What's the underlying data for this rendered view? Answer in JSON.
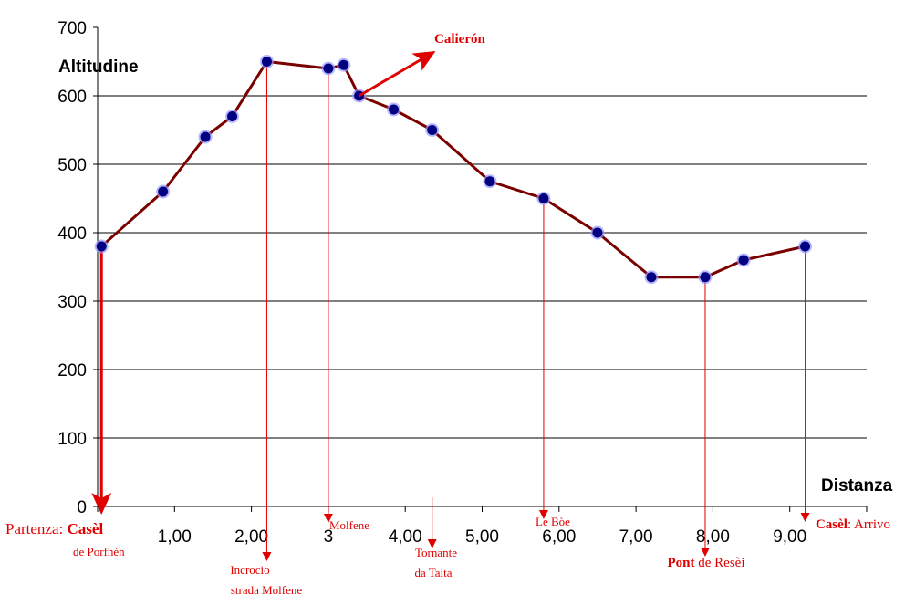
{
  "chart_data": {
    "type": "line",
    "ylabel": "Altitudine",
    "xlabel": "Distanza",
    "ylim": [
      0,
      700
    ],
    "xlim": [
      0,
      10
    ],
    "yticks": [
      "0",
      "100",
      "200",
      "300",
      "400",
      "500",
      "600",
      "700"
    ],
    "xticks": [
      {
        "value": 1,
        "label": "1,00"
      },
      {
        "value": 2,
        "label": "2,00"
      },
      {
        "value": 3,
        "label": "3"
      },
      {
        "value": 4,
        "label": "4,00"
      },
      {
        "value": 5,
        "label": "5,00"
      },
      {
        "value": 6,
        "label": "6,00"
      },
      {
        "value": 7,
        "label": "7,00"
      },
      {
        "value": 8,
        "label": "8,00"
      },
      {
        "value": 9,
        "label": "9,00"
      }
    ],
    "gridlines": [
      100,
      200,
      300,
      400,
      500,
      600
    ],
    "grid": true,
    "series": [
      {
        "x": [
          0.05,
          0.85,
          1.4,
          1.75,
          2.2,
          3.0,
          3.2,
          3.4,
          3.85,
          4.35,
          5.1,
          5.8,
          6.5,
          7.2,
          7.9,
          8.4,
          9.2
        ],
        "y": [
          380,
          460,
          540,
          570,
          650,
          640,
          645,
          600,
          580,
          550,
          475,
          450,
          400,
          335,
          335,
          360,
          380
        ]
      }
    ],
    "colors": {
      "line": "#7a0000",
      "marker": "#000080",
      "marker_glow": "#9999ff",
      "annotation": "#e00000"
    },
    "annotations": [
      {
        "x": 0.05,
        "parts": [
          {
            "text": "Partenza: ",
            "bold": false
          },
          {
            "text": "Casèl",
            "bold": true
          }
        ],
        "line2": "de Porfhén"
      },
      {
        "x": 2.2,
        "text": "Incrocio",
        "line2": "strada Molfene"
      },
      {
        "x": 3.0,
        "text": "Molfene"
      },
      {
        "x": 4.35,
        "text": "Tornante",
        "line2": "da Taita"
      },
      {
        "x": 5.8,
        "text": "Le Bòe"
      },
      {
        "x": 7.9,
        "parts": [
          {
            "text": "Pont",
            "bold": true
          },
          {
            "text": " de Resèi",
            "bold": false
          }
        ]
      },
      {
        "x": 9.2,
        "parts": [
          {
            "text": "Casèl",
            "bold": true
          },
          {
            "text": ": Arrivo",
            "bold": false
          }
        ]
      }
    ],
    "callout": {
      "text": "Calierón",
      "x": 3.4,
      "y": 600
    }
  }
}
